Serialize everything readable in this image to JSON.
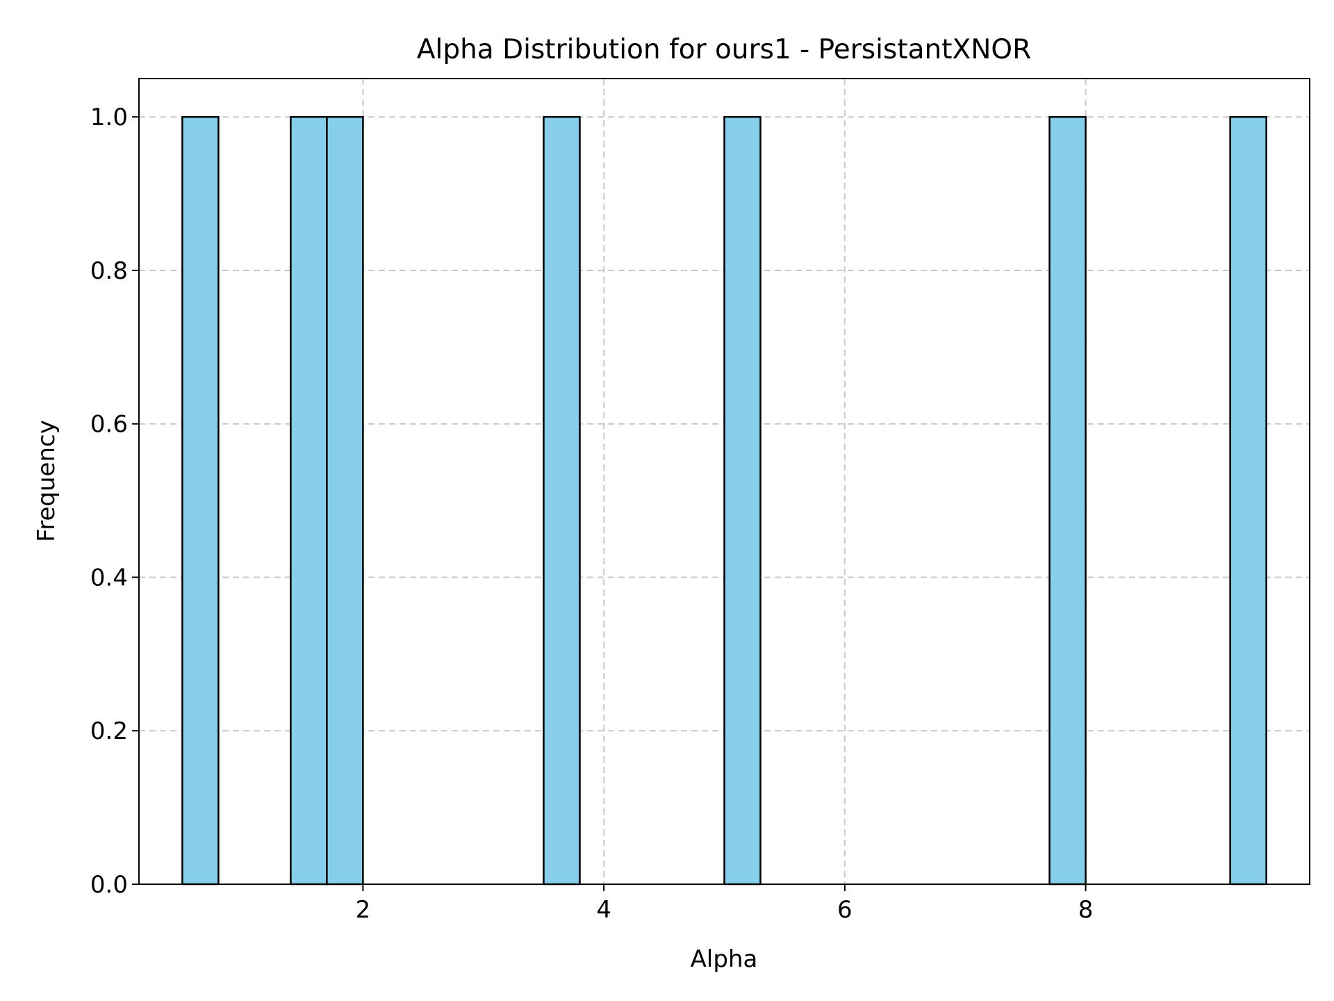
{
  "chart_data": {
    "type": "bar",
    "title": "Alpha Distribution for ours1 - PersistantXNOR",
    "xlabel": "Alpha",
    "ylabel": "Frequency",
    "xlim": [
      0.14,
      9.86
    ],
    "ylim": [
      0.0,
      1.05
    ],
    "xticks": [
      2,
      4,
      6,
      8
    ],
    "xtick_labels": [
      "2",
      "4",
      "6",
      "8"
    ],
    "yticks": [
      0.0,
      0.2,
      0.4,
      0.6,
      0.8,
      1.0
    ],
    "ytick_labels": [
      "0.0",
      "0.2",
      "0.4",
      "0.6",
      "0.8",
      "1.0"
    ],
    "grid": true,
    "bar_color": "#87ceeb",
    "edge_color": "#000000",
    "bins": [
      {
        "start": 0.5,
        "end": 0.8,
        "value": 1
      },
      {
        "start": 1.4,
        "end": 1.7,
        "value": 1
      },
      {
        "start": 1.7,
        "end": 2.0,
        "value": 1
      },
      {
        "start": 3.5,
        "end": 3.8,
        "value": 1
      },
      {
        "start": 5.0,
        "end": 5.3,
        "value": 1
      },
      {
        "start": 7.7,
        "end": 8.0,
        "value": 1
      },
      {
        "start": 9.2,
        "end": 9.5,
        "value": 1
      }
    ]
  }
}
